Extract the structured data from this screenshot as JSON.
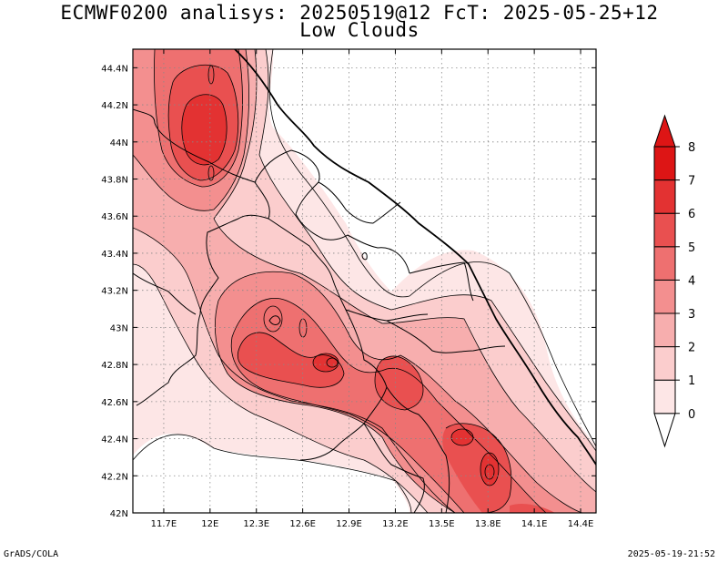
{
  "title_line1": "ECMWF0200 analisys: 20250519@12 FcT: 2025-05-25+12",
  "title_line2": "Low Clouds",
  "footer_left": "GrADS/COLA",
  "footer_right": "2025-05-19-21:52",
  "chart_data": {
    "type": "heatmap",
    "title": "ECMWF0200 analisys: 20250519@12 FcT: 2025-05-25+12",
    "subtitle": "Low Clouds",
    "x_ticks": [
      "11.7E",
      "12E",
      "12.3E",
      "12.6E",
      "12.9E",
      "13.2E",
      "13.5E",
      "13.8E",
      "14.1E",
      "14.4E"
    ],
    "y_ticks": [
      "44.4N",
      "44.2N",
      "44N",
      "43.8N",
      "43.6N",
      "43.4N",
      "43.2N",
      "43N",
      "42.8N",
      "42.6N",
      "42.4N",
      "42.2N",
      "42N"
    ],
    "xlim": [
      11.5,
      14.5
    ],
    "ylim": [
      42.0,
      44.5
    ],
    "grid": true,
    "legend_placement": "right",
    "colorbar": {
      "labels": [
        "0",
        "1",
        "2",
        "3",
        "4",
        "5",
        "6",
        "7",
        "8"
      ],
      "colors": [
        "#ffffff",
        "#fde6e6",
        "#fbcdcd",
        "#f7aeae",
        "#f38f8f",
        "#ee7070",
        "#e95050",
        "#e33232",
        "#dd1515"
      ]
    },
    "maxima": [
      {
        "lon": 12.0,
        "lat": 44.05,
        "value": 7.5
      },
      {
        "lon": 12.2,
        "lat": 42.8,
        "value": 6
      },
      {
        "lon": 12.6,
        "lat": 42.95,
        "value": 6
      },
      {
        "lon": 12.85,
        "lat": 42.8,
        "value": 6.5
      },
      {
        "lon": 13.2,
        "lat": 42.72,
        "value": 6
      },
      {
        "lon": 13.65,
        "lat": 42.4,
        "value": 6.5
      },
      {
        "lon": 13.85,
        "lat": 42.2,
        "value": 7
      },
      {
        "lon": 14.1,
        "lat": 42.0,
        "value": 6.5
      }
    ]
  }
}
